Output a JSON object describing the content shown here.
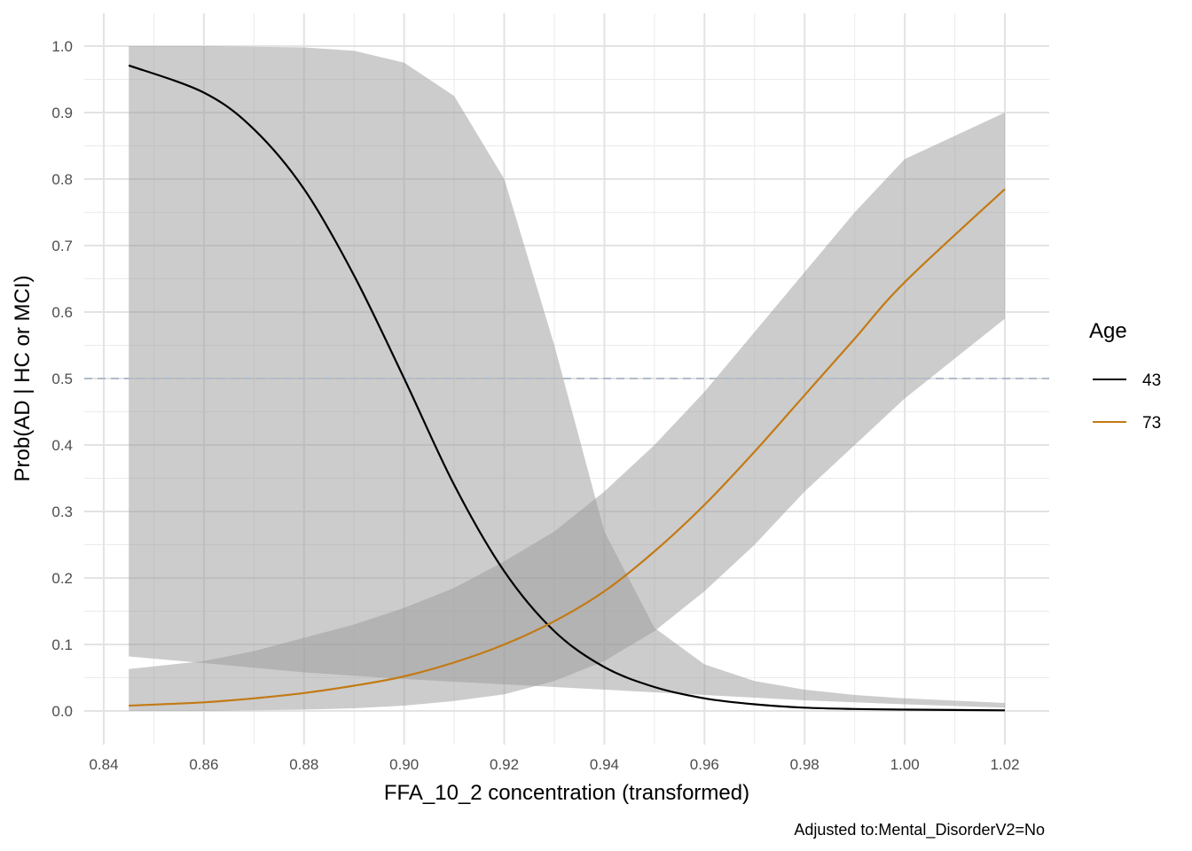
{
  "chart_data": {
    "type": "line",
    "title": "",
    "xlabel": "FFA_10_2 concentration (transformed)",
    "ylabel": "Prob(AD | HC or MCI)",
    "caption": "Adjusted to:Mental_DisorderV2=No",
    "xlim": [
      0.84,
      1.02
    ],
    "ylim": [
      0.0,
      1.0
    ],
    "x_ticks": [
      "0.84",
      "0.86",
      "0.88",
      "0.90",
      "0.92",
      "0.94",
      "0.96",
      "0.98",
      "1.00",
      "1.02"
    ],
    "x_tick_values": [
      0.84,
      0.86,
      0.88,
      0.9,
      0.92,
      0.94,
      0.96,
      0.98,
      1.0,
      1.02
    ],
    "y_ticks": [
      "0.0",
      "0.1",
      "0.2",
      "0.3",
      "0.4",
      "0.5",
      "0.6",
      "0.7",
      "0.8",
      "0.9",
      "1.0"
    ],
    "y_tick_values": [
      0.0,
      0.1,
      0.2,
      0.3,
      0.4,
      0.5,
      0.6,
      0.7,
      0.8,
      0.9,
      1.0
    ],
    "reference_line": {
      "y": 0.5,
      "style": "dashed",
      "color": "#b0bccb"
    },
    "grid": true,
    "legend": {
      "title": "Age",
      "position": "right"
    },
    "ribbon_color": "#999999",
    "series": [
      {
        "name": "43",
        "color": "#000000",
        "x": [
          0.845,
          0.86,
          0.87,
          0.88,
          0.89,
          0.9,
          0.91,
          0.92,
          0.93,
          0.94,
          0.95,
          0.96,
          0.97,
          0.98,
          0.99,
          1.0,
          1.02
        ],
        "y": [
          0.971,
          0.93,
          0.875,
          0.785,
          0.655,
          0.5,
          0.34,
          0.21,
          0.12,
          0.066,
          0.036,
          0.019,
          0.01,
          0.005,
          0.003,
          0.002,
          0.001
        ],
        "lower": [
          0.082,
          0.072,
          0.065,
          0.058,
          0.053,
          0.048,
          0.044,
          0.04,
          0.036,
          0.032,
          0.028,
          0.024,
          0.02,
          0.016,
          0.013,
          0.01,
          0.005
        ],
        "upper": [
          1.0,
          1.0,
          0.999,
          0.998,
          0.993,
          0.975,
          0.925,
          0.8,
          0.55,
          0.27,
          0.125,
          0.07,
          0.045,
          0.032,
          0.024,
          0.019,
          0.012
        ]
      },
      {
        "name": "73",
        "color": "#c37a14",
        "x": [
          0.845,
          0.86,
          0.87,
          0.88,
          0.89,
          0.9,
          0.91,
          0.92,
          0.93,
          0.94,
          0.95,
          0.96,
          0.97,
          0.98,
          0.99,
          1.0,
          1.02
        ],
        "y": [
          0.008,
          0.013,
          0.019,
          0.027,
          0.038,
          0.052,
          0.073,
          0.1,
          0.135,
          0.18,
          0.24,
          0.31,
          0.39,
          0.475,
          0.56,
          0.645,
          0.785
        ],
        "lower": [
          0.0,
          0.0,
          0.001,
          0.002,
          0.004,
          0.008,
          0.015,
          0.025,
          0.045,
          0.075,
          0.12,
          0.18,
          0.25,
          0.33,
          0.4,
          0.47,
          0.59
        ],
        "upper": [
          0.063,
          0.075,
          0.09,
          0.11,
          0.13,
          0.155,
          0.185,
          0.225,
          0.27,
          0.33,
          0.4,
          0.48,
          0.57,
          0.66,
          0.75,
          0.83,
          0.9
        ]
      }
    ]
  }
}
